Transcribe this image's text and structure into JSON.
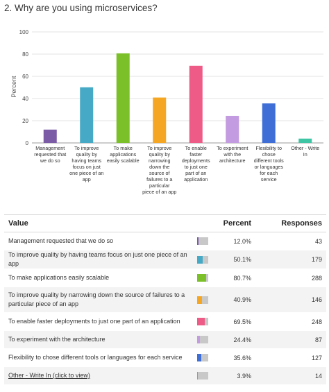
{
  "question": {
    "title": "2. Why are you using microservices?"
  },
  "chart_data": {
    "type": "bar",
    "ylabel": "Percent",
    "ylim": [
      0,
      100
    ],
    "yticks": [
      0,
      20,
      40,
      60,
      80,
      100
    ],
    "grid": true,
    "categories": [
      [
        "Management",
        "requested that",
        "we do so"
      ],
      [
        "To improve",
        "quality by",
        "having teams",
        "focus on just",
        "one piece of an",
        "app"
      ],
      [
        "To make",
        "applications",
        "easily scalable"
      ],
      [
        "To improve",
        "quality by",
        "narrowing",
        "down the",
        "source of",
        "failures to a",
        "particular",
        "piece of an app"
      ],
      [
        "To enable",
        "faster",
        "deployments",
        "to just one",
        "part of an",
        "application"
      ],
      [
        "To experiment",
        "with the",
        "architecture"
      ],
      [
        "Flexibility to",
        "chose",
        "different tools",
        "or languages",
        "for each",
        "service"
      ],
      [
        "Other - Write",
        "In"
      ]
    ],
    "values": [
      12.0,
      50.1,
      80.7,
      40.9,
      69.5,
      24.4,
      35.6,
      3.9
    ],
    "colors": [
      "#7b5aa6",
      "#46aac6",
      "#7cc029",
      "#f5a623",
      "#ef5b87",
      "#c39be0",
      "#3f6fd6",
      "#3ec6a4"
    ]
  },
  "table": {
    "headers": {
      "value": "Value",
      "percent": "Percent",
      "responses": "Responses"
    },
    "rows": [
      {
        "value": "Management requested that we do so",
        "percent": "12.0%",
        "responses": "43"
      },
      {
        "value": "To improve quality by having teams focus on just one piece of an app",
        "percent": "50.1%",
        "responses": "179"
      },
      {
        "value": "To make applications easily scalable",
        "percent": "80.7%",
        "responses": "288"
      },
      {
        "value": "To improve quality by narrowing down the source of failures to a particular piece of an app",
        "percent": "40.9%",
        "responses": "146"
      },
      {
        "value": "To enable faster deployments to just one part of an application",
        "percent": "69.5%",
        "responses": "248"
      },
      {
        "value": "To experiment with the architecture",
        "percent": "24.4%",
        "responses": "87"
      },
      {
        "value": "Flexibility to chose different tools or languages for each service",
        "percent": "35.6%",
        "responses": "127"
      },
      {
        "value": "Other - Write In (click to view)",
        "percent": "3.9%",
        "responses": "14"
      }
    ]
  }
}
